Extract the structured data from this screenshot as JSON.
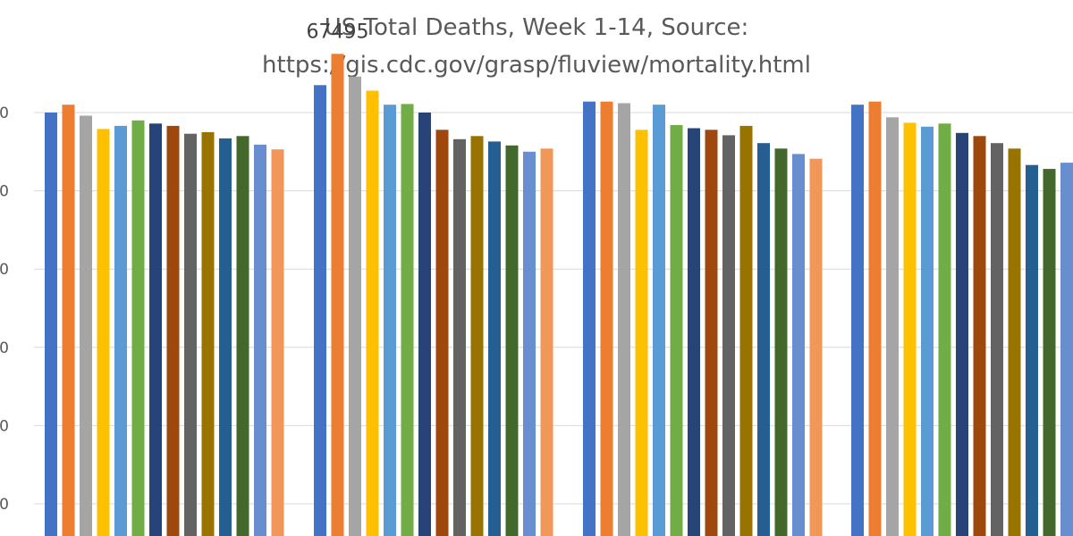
{
  "chart_data": {
    "type": "bar",
    "title": "US Total Deaths, Week 1-14, Source:",
    "subtitle": "https://gis.cdc.gov/grasp/fluview/mortality.html",
    "xlabel": "",
    "ylabel": "",
    "ylim": [
      0,
      70000
    ],
    "grid": true,
    "y_tick_labels_visible": [
      "0",
      "0",
      "0",
      "0",
      "0",
      "0"
    ],
    "category_labels_visible": false,
    "data_labels": [
      {
        "series_index": 1,
        "category_index": 1,
        "text": "67495"
      }
    ],
    "colors": [
      "#4472C4",
      "#ED7D31",
      "#A5A5A5",
      "#FFC000",
      "#5B9BD5",
      "#70AD47",
      "#264478",
      "#9E480E",
      "#636363",
      "#997300",
      "#255E91",
      "#43682B",
      "#698ED0",
      "#F1975A"
    ],
    "series": [
      {
        "values": [
          60000,
          63500,
          61400
        ]
      },
      {
        "values": [
          61000,
          67495,
          61400
        ]
      },
      {
        "values": [
          59600,
          64600,
          61200
        ]
      },
      {
        "values": [
          57900,
          62800,
          57800
        ]
      },
      {
        "values": [
          58300,
          61000,
          61000
        ]
      },
      {
        "values": [
          59000,
          61100,
          58400
        ]
      },
      {
        "values": [
          58600,
          60000,
          58000
        ]
      },
      {
        "values": [
          58300,
          57800,
          57800
        ]
      },
      {
        "values": [
          57300,
          56600,
          57100
        ]
      },
      {
        "values": [
          57500,
          57000,
          58300
        ]
      },
      {
        "values": [
          56700,
          56300,
          56100
        ]
      },
      {
        "values": [
          57000,
          55800,
          55400
        ]
      },
      {
        "values": [
          55900,
          55000,
          54700
        ]
      },
      {
        "values": [
          55300,
          55400,
          54100
        ]
      }
    ]
  }
}
